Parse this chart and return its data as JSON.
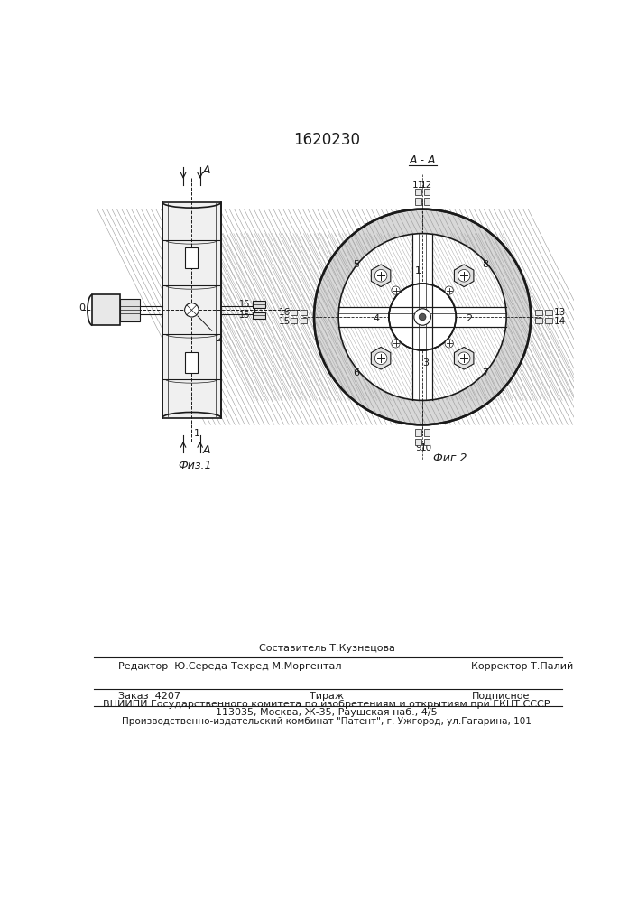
{
  "patent_number": "1620230",
  "fig1_label": "Физ.1",
  "fig2_label": "Фиг 2",
  "section_label": "А - А",
  "footer": {
    "editor_label": "Редактор  Ю.Середа",
    "composer_label": "Составитель Т.Кузнецова",
    "techred_label": "Техред М.Моргентал",
    "corrector_label": "Корректор Т.Палий",
    "order_label": "Заказ  4207",
    "tirazh_label": "Тираж",
    "podpisnoe_label": "Подписное",
    "vniiipi_line1": "ВНИИПИ Государственного комитета по изобретениям и открытиям при ГКНТ СССР",
    "vniiipi_line2": "113035, Москва, Ж-35, Раушская наб., 4/5",
    "production_line": "Производственно-издательский комбинат \"Патент\", г. Ужгород, ул.Гагарина, 101"
  },
  "bg_color": "#ffffff",
  "line_color": "#1a1a1a"
}
